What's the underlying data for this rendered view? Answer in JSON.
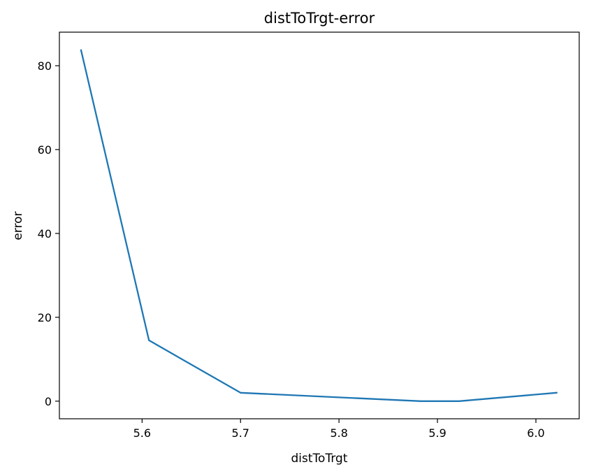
{
  "chart_data": {
    "type": "line",
    "title": "distToTrgt-error",
    "xlabel": "distToTrgt",
    "ylabel": "error",
    "xlim": [
      5.516,
      6.044
    ],
    "ylim": [
      -4.2,
      88
    ],
    "xticks": [
      5.6,
      5.7,
      5.8,
      5.9,
      6.0
    ],
    "xtick_labels": [
      "5.6",
      "5.7",
      "5.8",
      "5.9",
      "6.0"
    ],
    "yticks": [
      0,
      20,
      40,
      60,
      80
    ],
    "ytick_labels": [
      "0",
      "20",
      "40",
      "60",
      "80"
    ],
    "grid": false,
    "series": [
      {
        "color": "#1f77b4",
        "x": [
          5.538,
          5.607,
          5.7,
          5.883,
          5.922,
          6.021
        ],
        "y": [
          83.7,
          14.5,
          2.0,
          0.0,
          0.0,
          2.0
        ]
      }
    ]
  }
}
